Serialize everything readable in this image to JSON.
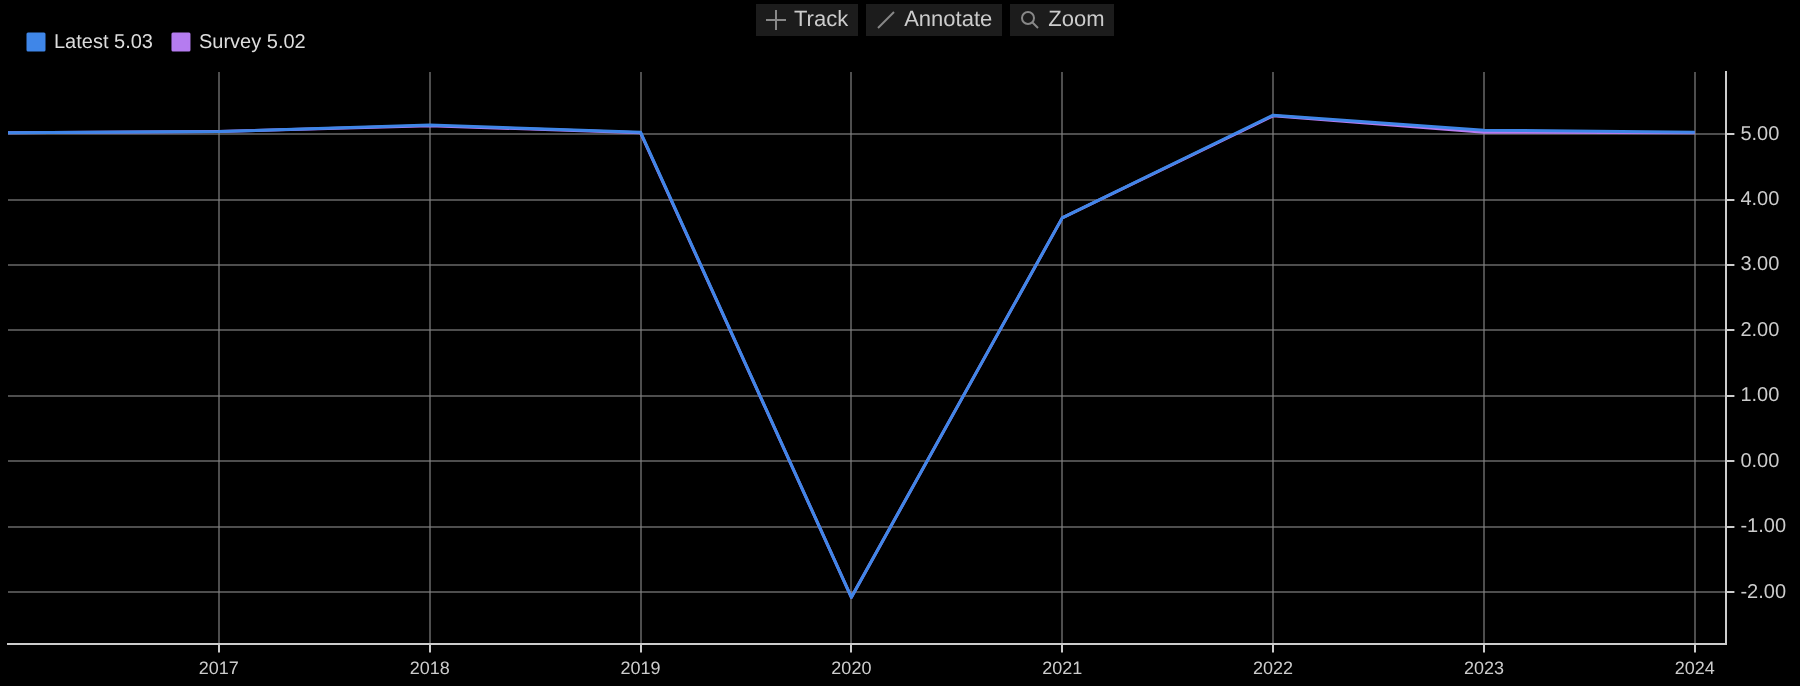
{
  "chart_data": {
    "type": "line",
    "x": [
      2016,
      2017,
      2018,
      2019,
      2020,
      2021,
      2022,
      2023,
      2024
    ],
    "xlim": [
      2016,
      2024.15
    ],
    "xticks": [
      2017,
      2018,
      2019,
      2020,
      2021,
      2022,
      2023,
      2024
    ],
    "ylim": [
      -2.8,
      5.95
    ],
    "yticks": [
      {
        "value": -2,
        "label": "-2.00"
      },
      {
        "value": -1,
        "label": "-1.00"
      },
      {
        "value": 0,
        "label": "0.00"
      },
      {
        "value": 1,
        "label": "1.00"
      },
      {
        "value": 2,
        "label": "2.00"
      },
      {
        "value": 3,
        "label": "3.00"
      },
      {
        "value": 4,
        "label": "4.00"
      },
      {
        "value": 5,
        "label": "5.00"
      }
    ],
    "series": [
      {
        "name": "Latest 5.03",
        "color": "#3f86e8",
        "values": [
          5.02,
          5.04,
          5.14,
          5.03,
          -2.08,
          3.72,
          5.29,
          5.06,
          5.03
        ]
      },
      {
        "name": "Survey 5.02",
        "color": "#b57cf0",
        "values": [
          5.02,
          5.04,
          5.13,
          5.02,
          -2.08,
          3.72,
          5.28,
          5.03,
          5.02
        ]
      }
    ],
    "grid": true,
    "legend": "top left",
    "marker": "none",
    "line_style": "solid",
    "annotations": [
      "Track",
      "Annotate",
      "Zoom"
    ]
  }
}
